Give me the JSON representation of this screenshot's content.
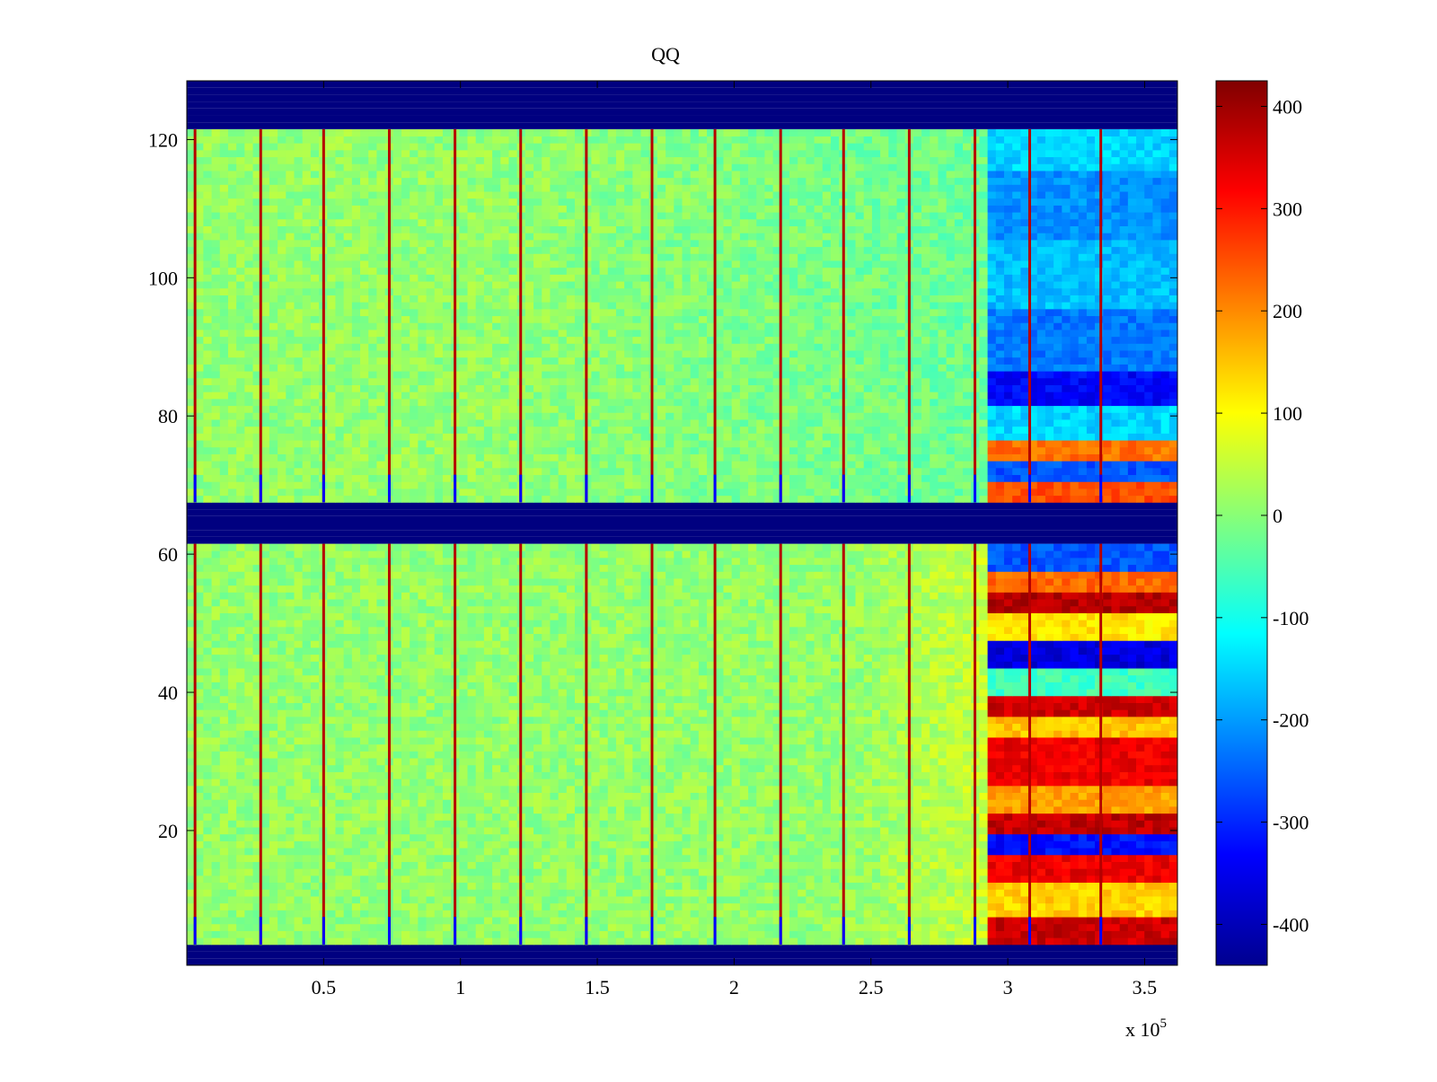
{
  "chart_data": {
    "type": "heatmap",
    "title": "QQ",
    "xlabel": "",
    "ylabel": "",
    "x_multiplier_label": "x 10",
    "x_multiplier_exponent": "5",
    "xlim": [
      0,
      3.62
    ],
    "ylim": [
      0.5,
      128.5
    ],
    "xticks": [
      0.5,
      1,
      1.5,
      2,
      2.5,
      3,
      3.5
    ],
    "xtick_labels": [
      "0.5",
      "1",
      "1.5",
      "2",
      "2.5",
      "3",
      "3.5"
    ],
    "yticks": [
      20,
      40,
      60,
      80,
      100,
      120
    ],
    "ytick_labels": [
      "20",
      "40",
      "60",
      "80",
      "100",
      "120"
    ],
    "colorbar": {
      "colormap": "jet",
      "clim": [
        -440,
        425
      ],
      "ticks": [
        -400,
        -300,
        -200,
        -100,
        0,
        100,
        200,
        300,
        400
      ],
      "tick_labels": [
        "-400",
        "-300",
        "-200",
        "-100",
        "0",
        "100",
        "200",
        "300",
        "400"
      ]
    },
    "empty_row_bands": [
      [
        0.5,
        3.5
      ],
      [
        61.5,
        67.5
      ],
      [
        121.5,
        128.5
      ]
    ],
    "baseline_value": 10,
    "spike_columns_x": [
      0.03,
      0.27,
      0.5,
      0.74,
      0.98,
      1.22,
      1.46,
      1.7,
      1.93,
      2.17,
      2.4,
      2.64,
      2.88,
      3.08,
      3.34
    ],
    "spike_value_peak": 380,
    "spike_value_base_rows": -330,
    "late_region_start_x": 2.93,
    "upper_block_late_values": [
      {
        "rows": [
          116,
          121
        ],
        "value": -150
      },
      {
        "rows": [
          106,
          115
        ],
        "value": -210
      },
      {
        "rows": [
          96,
          105
        ],
        "value": -170
      },
      {
        "rows": [
          87,
          95
        ],
        "value": -230
      },
      {
        "rows": [
          82,
          86
        ],
        "value": -330
      },
      {
        "rows": [
          77,
          81
        ],
        "value": -150
      },
      {
        "rows": [
          74,
          76
        ],
        "value": 220
      },
      {
        "rows": [
          71,
          73
        ],
        "value": -260
      },
      {
        "rows": [
          68,
          70
        ],
        "value": 250
      }
    ],
    "lower_block_late_values": [
      {
        "rows": [
          58,
          61
        ],
        "value": -260
      },
      {
        "rows": [
          55,
          57
        ],
        "value": 230
      },
      {
        "rows": [
          52,
          54
        ],
        "value": 380
      },
      {
        "rows": [
          48,
          51
        ],
        "value": 120
      },
      {
        "rows": [
          44,
          47
        ],
        "value": -360
      },
      {
        "rows": [
          40,
          43
        ],
        "value": -60
      },
      {
        "rows": [
          37,
          39
        ],
        "value": 360
      },
      {
        "rows": [
          34,
          36
        ],
        "value": 150
      },
      {
        "rows": [
          27,
          33
        ],
        "value": 330
      },
      {
        "rows": [
          23,
          26
        ],
        "value": 180
      },
      {
        "rows": [
          20,
          22
        ],
        "value": 370
      },
      {
        "rows": [
          17,
          19
        ],
        "value": -320
      },
      {
        "rows": [
          13,
          16
        ],
        "value": 330
      },
      {
        "rows": [
          8,
          12
        ],
        "value": 140
      },
      {
        "rows": [
          4,
          7
        ],
        "value": 360
      }
    ]
  }
}
